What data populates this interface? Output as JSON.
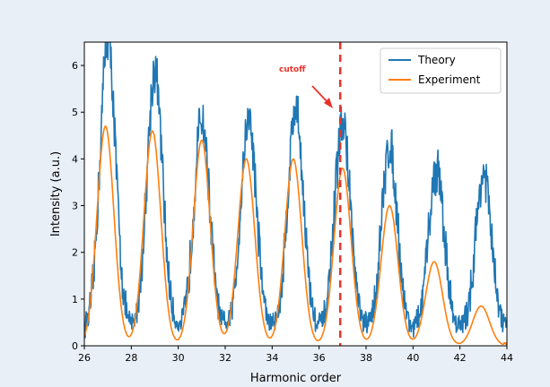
{
  "chart_data": {
    "type": "line",
    "xlabel": "Harmonic order",
    "ylabel": "Intensity (a.u.)",
    "xlim": [
      26,
      44
    ],
    "ylim": [
      0,
      6.5
    ],
    "x_ticks": [
      26,
      28,
      30,
      32,
      34,
      36,
      38,
      40,
      42,
      44
    ],
    "y_ticks": [
      0,
      1,
      2,
      3,
      4,
      5,
      6
    ],
    "legend_position": "top-right",
    "grid": false,
    "cutoff_x": 36.9,
    "annotation": "cutoff",
    "series": [
      {
        "name": "Theory",
        "color": "#1f77b4",
        "peaks": [
          {
            "center": 27.0,
            "amplitude": 6.2
          },
          {
            "center": 29.0,
            "amplitude": 5.5
          },
          {
            "center": 31.0,
            "amplitude": 4.5
          },
          {
            "center": 33.0,
            "amplitude": 4.5
          },
          {
            "center": 35.0,
            "amplitude": 4.7
          },
          {
            "center": 37.0,
            "amplitude": 4.4
          },
          {
            "center": 39.0,
            "amplitude": 3.9
          },
          {
            "center": 41.0,
            "amplitude": 3.4
          },
          {
            "center": 43.0,
            "amplitude": 3.3
          }
        ]
      },
      {
        "name": "Experiment",
        "color": "#ff7f0e",
        "peaks": [
          {
            "center": 26.9,
            "amplitude": 4.7
          },
          {
            "center": 28.9,
            "amplitude": 4.6
          },
          {
            "center": 31.0,
            "amplitude": 4.4
          },
          {
            "center": 32.9,
            "amplitude": 4.0
          },
          {
            "center": 34.9,
            "amplitude": 4.0
          },
          {
            "center": 37.0,
            "amplitude": 3.8
          },
          {
            "center": 39.0,
            "amplitude": 3.0
          },
          {
            "center": 40.9,
            "amplitude": 1.8
          },
          {
            "center": 42.9,
            "amplitude": 0.85
          }
        ]
      }
    ]
  }
}
